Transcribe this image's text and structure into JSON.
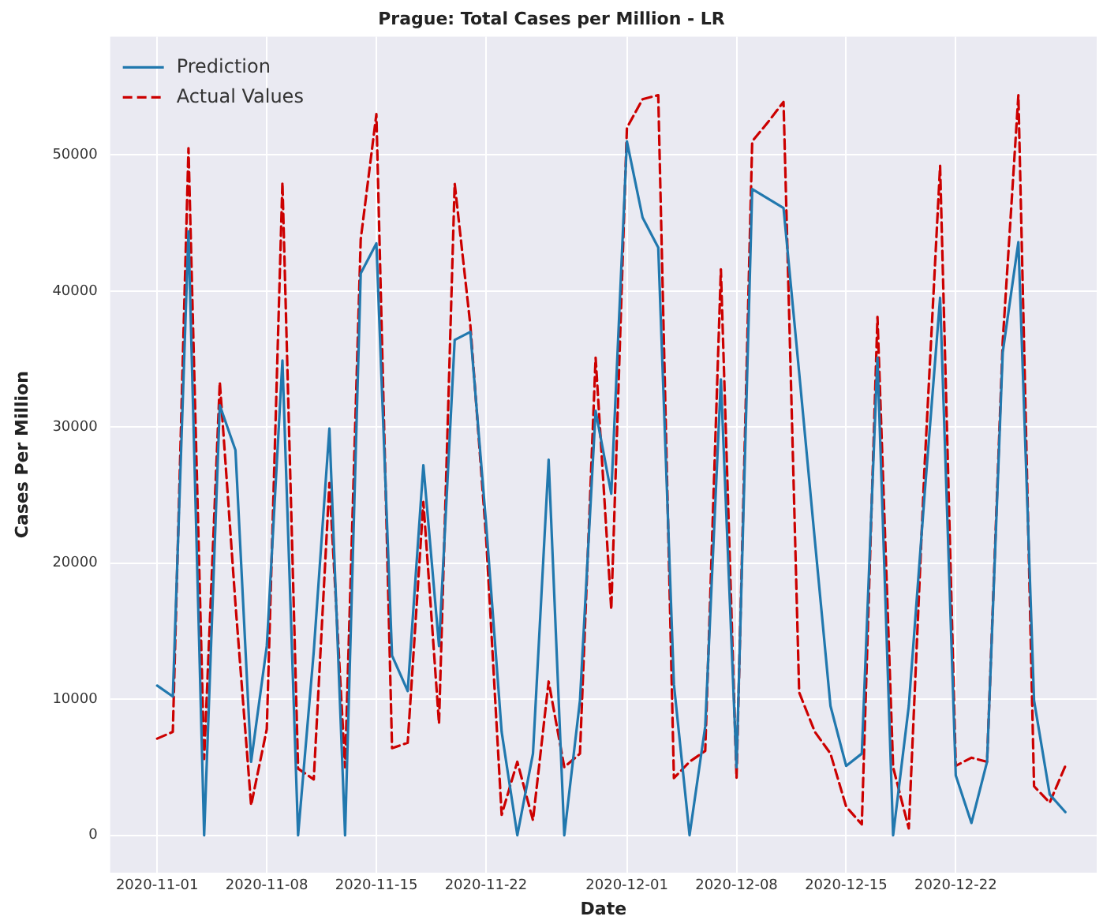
{
  "chart_data": {
    "type": "line",
    "title": "Prague: Total Cases per Million - LR",
    "xlabel": "Date",
    "ylabel": "Cases Per Million",
    "x": [
      "2020-11-01",
      "2020-11-02",
      "2020-11-03",
      "2020-11-04",
      "2020-11-05",
      "2020-11-06",
      "2020-11-07",
      "2020-11-08",
      "2020-11-09",
      "2020-11-10",
      "2020-11-11",
      "2020-11-12",
      "2020-11-13",
      "2020-11-14",
      "2020-11-15",
      "2020-11-16",
      "2020-11-17",
      "2020-11-18",
      "2020-11-19",
      "2020-11-20",
      "2020-11-21",
      "2020-11-22",
      "2020-11-23",
      "2020-11-24",
      "2020-11-25",
      "2020-11-26",
      "2020-11-27",
      "2020-11-28",
      "2020-11-29",
      "2020-11-30",
      "2020-12-01",
      "2020-12-02",
      "2020-12-03",
      "2020-12-04",
      "2020-12-05",
      "2020-12-06",
      "2020-12-07",
      "2020-12-08",
      "2020-12-09",
      "2020-12-10",
      "2020-12-11",
      "2020-12-12",
      "2020-12-13",
      "2020-12-14",
      "2020-12-15",
      "2020-12-16",
      "2020-12-17",
      "2020-12-18",
      "2020-12-19",
      "2020-12-20",
      "2020-12-21",
      "2020-12-22",
      "2020-12-23",
      "2020-12-24",
      "2020-12-25",
      "2020-12-26",
      "2020-12-27",
      "2020-12-28",
      "2020-12-29"
    ],
    "series": [
      {
        "name": "Prediction",
        "color": "#2178ae",
        "line_style": "solid",
        "values": [
          11000,
          10200,
          44400,
          0,
          31600,
          28300,
          5400,
          13900,
          34900,
          0,
          13500,
          29900,
          0,
          41300,
          43500,
          13200,
          10600,
          27200,
          13900,
          36400,
          37000,
          23000,
          7600,
          0,
          6000,
          27600,
          0,
          9900,
          31200,
          25100,
          51000,
          45400,
          43200,
          11100,
          0,
          8000,
          33500,
          5000,
          47500,
          46800,
          46100,
          34000,
          21700,
          9500,
          5100,
          6000,
          35100,
          0,
          9500,
          24900,
          39500,
          4400,
          900,
          5400,
          35500,
          43600,
          9900,
          3000,
          1700
        ]
      },
      {
        "name": "Actual Values",
        "color": "#cc0000",
        "line_style": "dashed",
        "values": [
          7100,
          7600,
          50500,
          5600,
          33300,
          17000,
          2200,
          7800,
          48000,
          4900,
          4100,
          25900,
          5000,
          43800,
          53000,
          6400,
          6800,
          24500,
          8200,
          47900,
          37500,
          22000,
          1500,
          5400,
          1100,
          11300,
          5000,
          6000,
          35100,
          16600,
          52000,
          54100,
          54400,
          4200,
          5400,
          6200,
          41600,
          4200,
          51000,
          52400,
          53900,
          10500,
          7600,
          6000,
          2100,
          800,
          38100,
          5000,
          500,
          26900,
          49200,
          5100,
          5700,
          5400,
          36300,
          54400,
          3600,
          2400,
          5100
        ]
      }
    ],
    "xlim": [
      "2020-10-29",
      "2020-12-31"
    ],
    "xticks": [
      "2020-11-01",
      "2020-11-08",
      "2020-11-15",
      "2020-11-22",
      "2020-12-01",
      "2020-12-08",
      "2020-12-15",
      "2020-12-22"
    ],
    "ylim": [
      -2750,
      58700
    ],
    "yticks": [
      0,
      10000,
      20000,
      30000,
      40000,
      50000
    ],
    "grid": true,
    "legend": "top left",
    "marker": "none"
  }
}
